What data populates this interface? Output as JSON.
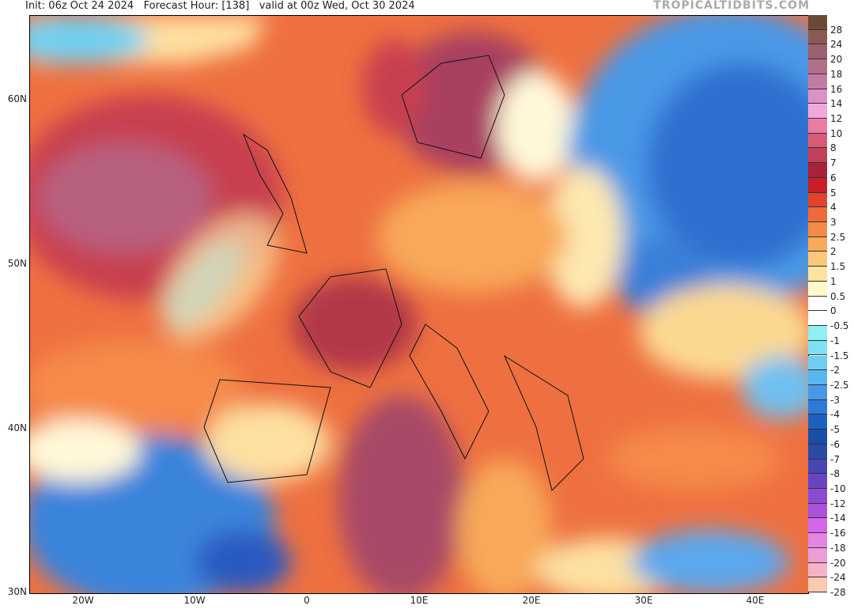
{
  "header": {
    "init": "Init: 06z Oct 24 2024",
    "forecast_hour": "Forecast Hour: [138]",
    "valid": "valid at 00z Wed, Oct 30 2024",
    "brand": "TROPICALTIDBITS.COM"
  },
  "lat_labels": [
    "60N",
    "50N",
    "40N",
    "30N"
  ],
  "lon_labels": [
    "20W",
    "10W",
    "0",
    "10E",
    "20E",
    "30E",
    "40E"
  ],
  "colorbar": {
    "labels": [
      "28",
      "24",
      "20",
      "18",
      "16",
      "14",
      "12",
      "10",
      "8",
      "7",
      "6",
      "5",
      "4",
      "3",
      "2.5",
      "2",
      "1.5",
      "1",
      "0.5",
      "0",
      "-0.5",
      "-1",
      "-1.5",
      "-2",
      "-2.5",
      "-3",
      "-4",
      "-5",
      "-6",
      "-7",
      "-8",
      "-10",
      "-12",
      "-14",
      "-16",
      "-18",
      "-20",
      "-24",
      "-28"
    ],
    "colors": [
      "#6b4a35",
      "#8a5a55",
      "#9c6070",
      "#b07088",
      "#c27ca4",
      "#da92c6",
      "#f2a6dc",
      "#ea7ca4",
      "#d85a78",
      "#c2405a",
      "#a8223c",
      "#c81e28",
      "#e0432e",
      "#ee6a3a",
      "#f58a48",
      "#f9a95a",
      "#fbc87a",
      "#fde2a2",
      "#fffac8",
      "#ffffff",
      "#ffffff",
      "#8ef0f0",
      "#7ee0f0",
      "#70cdf0",
      "#5ab4ee",
      "#4898e6",
      "#2e7ad8",
      "#1e60c0",
      "#164ea8",
      "#2a4aa8",
      "#4646b4",
      "#6a44c0",
      "#8c4ad0",
      "#aa52dc",
      "#d466e8",
      "#e484e4",
      "#ec9cd8",
      "#f4b4c8",
      "#fcc8b0"
    ]
  }
}
